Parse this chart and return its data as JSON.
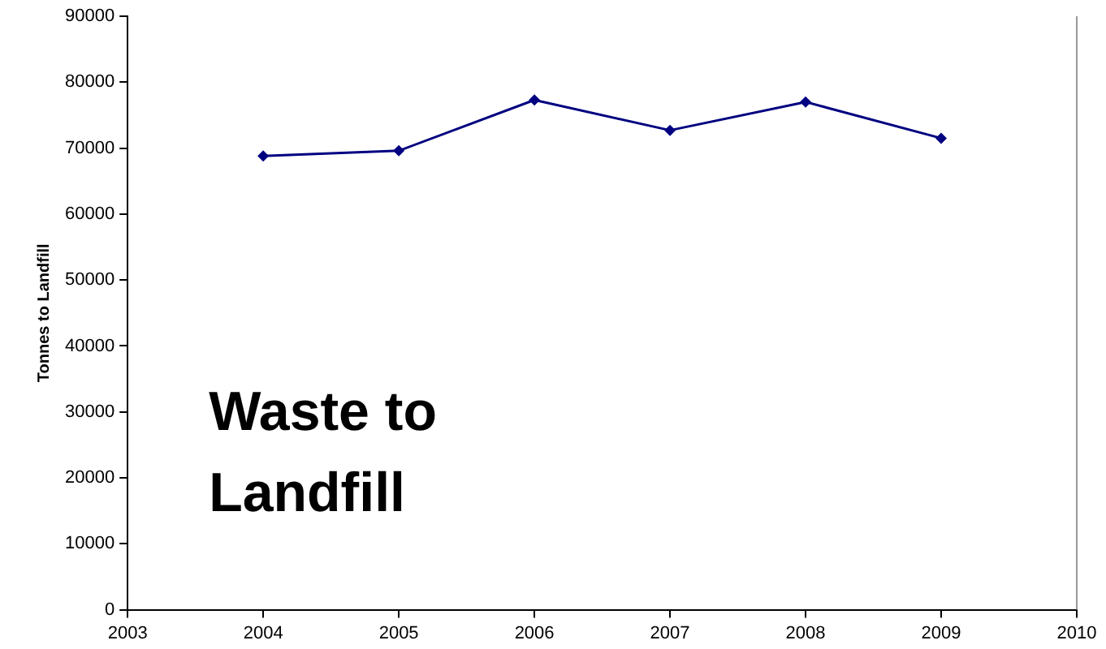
{
  "chart_data": {
    "type": "line",
    "title": "Waste to Landfill",
    "ylabel": "Tonnes to Landfill",
    "x": [
      2004,
      2005,
      2006,
      2007,
      2008,
      2009
    ],
    "series": [
      {
        "color": "#000080",
        "values": [
          68800,
          69600,
          77300,
          72700,
          77000,
          71500
        ]
      }
    ],
    "xlim": [
      2003,
      2010
    ],
    "xticks": [
      2003,
      2004,
      2005,
      2006,
      2007,
      2008,
      2009,
      2010
    ],
    "ylim": [
      0,
      90000
    ],
    "yticks": [
      0,
      10000,
      20000,
      30000,
      40000,
      50000,
      60000,
      70000,
      80000,
      90000
    ],
    "grid": false,
    "legend": false,
    "marker": "diamond",
    "line_style": "solid"
  }
}
